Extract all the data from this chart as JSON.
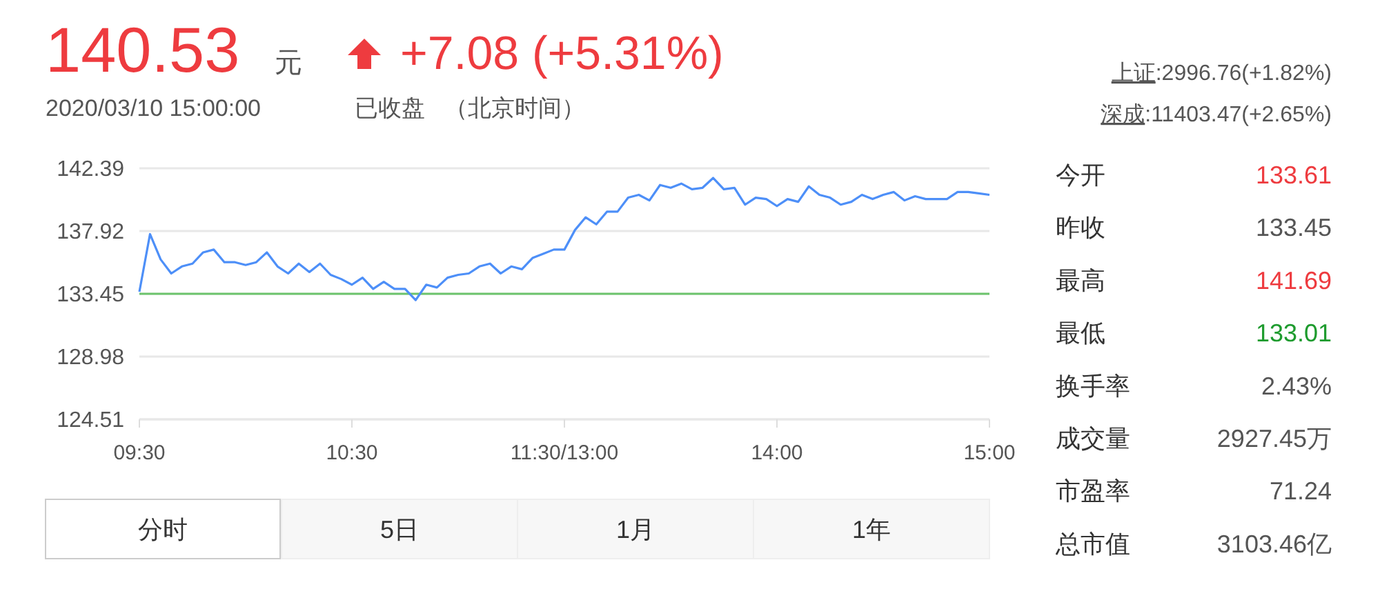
{
  "chart_data": [
    {
      "type": "line",
      "categories": [
        "09:30",
        null,
        null,
        null,
        null,
        null,
        null,
        null,
        null,
        null,
        null,
        null,
        null,
        null,
        null,
        null,
        null,
        null,
        null,
        null,
        "10:30",
        null,
        null,
        null,
        null,
        null,
        null,
        null,
        null,
        null,
        null,
        null,
        null,
        null,
        null,
        null,
        null,
        null,
        null,
        null,
        "11:30/13:00",
        null,
        null,
        null,
        null,
        null,
        null,
        null,
        null,
        null,
        null,
        null,
        null,
        null,
        null,
        null,
        null,
        null,
        null,
        null,
        "14:00",
        null,
        null,
        null,
        null,
        null,
        null,
        null,
        null,
        null,
        null,
        null,
        null,
        null,
        null,
        null,
        null,
        null,
        null,
        null,
        "15:00"
      ],
      "series": [
        {
          "color": "#4d8ff8",
          "values": [
            133.6,
            137.7,
            135.9,
            134.9,
            135.4,
            135.6,
            136.4,
            136.6,
            135.7,
            135.7,
            135.5,
            135.7,
            136.4,
            135.4,
            134.9,
            135.6,
            135.0,
            135.6,
            134.8,
            134.5,
            134.1,
            134.6,
            133.8,
            134.3,
            133.8,
            133.8,
            133.0,
            134.1,
            133.9,
            134.6,
            134.8,
            134.9,
            135.4,
            135.6,
            134.9,
            135.4,
            135.2,
            136.0,
            136.3,
            136.6,
            136.6,
            138.0,
            138.9,
            138.4,
            139.3,
            139.3,
            140.3,
            140.5,
            140.1,
            141.2,
            141.0,
            141.3,
            140.9,
            141.0,
            141.7,
            140.9,
            141.0,
            139.8,
            140.3,
            140.2,
            139.7,
            140.2,
            140.0,
            141.1,
            140.5,
            140.3,
            139.8,
            140.0,
            140.5,
            140.2,
            140.5,
            140.7,
            140.1,
            140.4,
            140.2,
            140.2,
            140.2,
            140.7,
            140.7,
            140.6,
            140.5
          ]
        }
      ],
      "ylim": [
        124.51,
        142.39
      ],
      "yticks": [
        124.51,
        128.98,
        133.45,
        137.92,
        142.39
      ],
      "grid": "y",
      "marker": "none",
      "line_style": "solid",
      "ref_lines": [
        {
          "axis": "y",
          "value": 133.45,
          "color": "#6cc46c"
        }
      ]
    },
    {
      "type": "other",
      "annotations": [
        "140.53",
        "元",
        "+7.08 (+5.31%)",
        "2020/03/10 15:00:00",
        "已收盘",
        "（北京时间）",
        "上证",
        ":2996.76(+1.82%)",
        "深成",
        ":11403.47(+2.65%)",
        "今开",
        "133.61",
        "昨收",
        "133.45",
        "最高",
        "141.69",
        "最低",
        "133.01",
        "换手率",
        "2.43%",
        "成交量",
        "2927.45万",
        "市盈率",
        "71.24",
        "总市值",
        "3103.46亿",
        "分时",
        "5日",
        "1月",
        "1年"
      ]
    }
  ]
}
